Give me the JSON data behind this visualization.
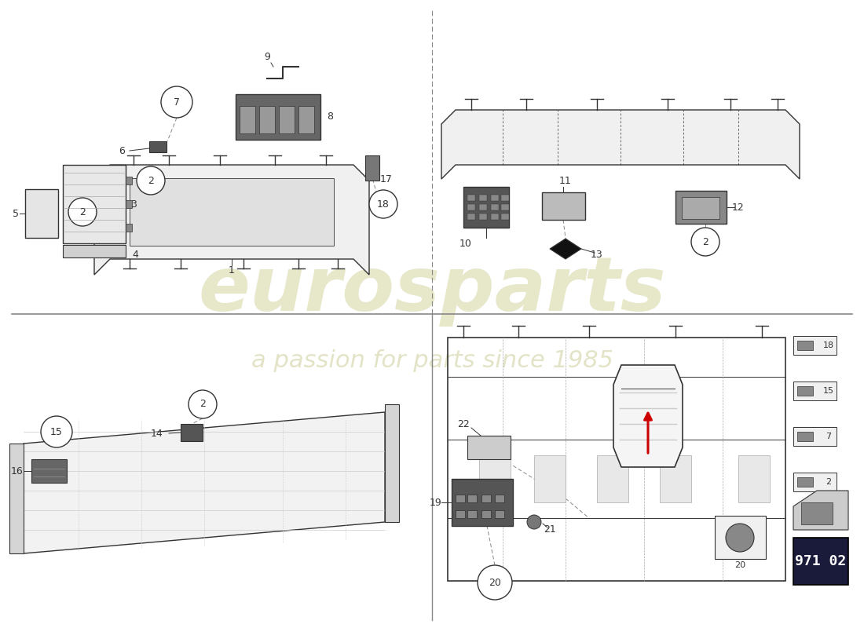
{
  "bg_color": "#ffffff",
  "line_color": "#333333",
  "wm1_color": "#d4d4a0",
  "wm2_color": "#c8c890",
  "part_number_bg": "#1a1a3a",
  "part_number_text": "#ffffff",
  "part_number": "971 02",
  "red_arrow_color": "#cc0000",
  "divider_color": "#888888",
  "gray_part": "#888888",
  "dark_part": "#444444",
  "light_part": "#cccccc",
  "mid_part": "#999999"
}
